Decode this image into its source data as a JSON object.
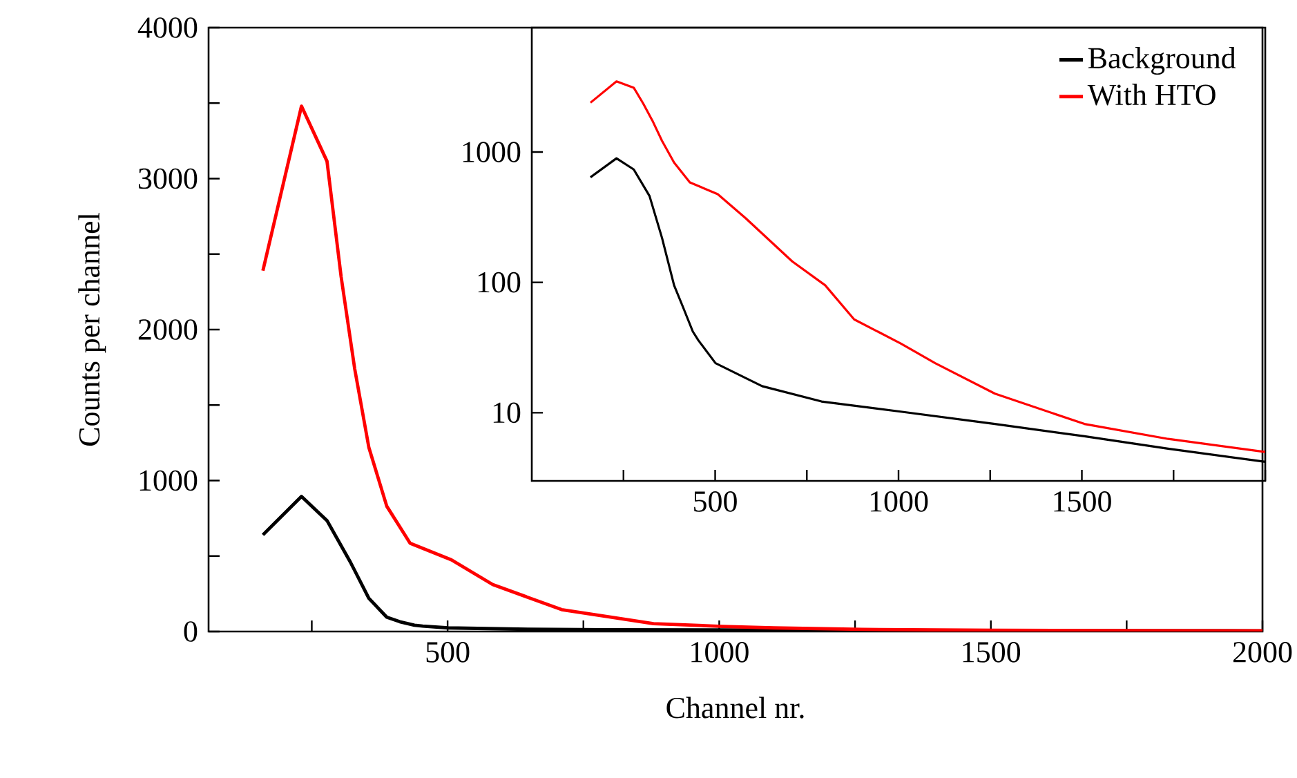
{
  "chart_data": [
    {
      "type": "line",
      "xlabel": "Channel nr.",
      "ylabel": "Counts per channel",
      "xlim": [
        60,
        2000
      ],
      "ylim": [
        0,
        4000
      ],
      "xticks": [
        {
          "value": 250,
          "label": null
        },
        500,
        {
          "value": 750,
          "label": null
        },
        1000,
        {
          "value": 1250,
          "label": null
        },
        1500,
        {
          "value": 1750,
          "label": null
        },
        2000
      ],
      "yticks": [
        0,
        {
          "value": 500,
          "label": null
        },
        1000,
        {
          "value": 1500,
          "label": null
        },
        2000,
        {
          "value": 2500,
          "label": null
        },
        3000,
        {
          "value": 3500,
          "label": null
        },
        4000
      ],
      "grid": false,
      "legend": false,
      "series": [
        {
          "color": "#000000",
          "x": [
            160,
            231,
            278,
            321,
            355,
            388,
            412,
            439,
            454,
            501,
            628,
            790,
            1006,
            1263,
            1507,
            1735,
            2000
          ],
          "values": [
            640,
            895,
            735,
            460,
            220,
            95,
            65,
            42,
            36,
            24,
            16,
            12.2,
            10.2,
            8.2,
            6.6,
            5.3,
            4.2
          ]
        },
        {
          "color": "#ff0000",
          "x": [
            160,
            231,
            278,
            304,
            329,
            355,
            388,
            431,
            507,
            583,
            710,
            800,
            879,
            1006,
            1100,
            1263,
            1507,
            1735,
            2000
          ],
          "values": [
            2390,
            3480,
            3115,
            2350,
            1740,
            1220,
            830,
            585,
            475,
            311,
            145,
            95,
            52,
            34,
            24,
            14,
            8.2,
            6.3,
            5.0
          ]
        }
      ]
    },
    {
      "type": "line",
      "xlim": [
        0,
        2000
      ],
      "ylim": [
        3,
        9000
      ],
      "log": "y",
      "xticks": [
        {
          "value": 250,
          "label": null
        },
        500,
        {
          "value": 750,
          "label": null
        },
        1000,
        {
          "value": 1250,
          "label": null
        },
        1500,
        {
          "value": 1750,
          "label": null
        },
        {
          "value": 2000,
          "label": null
        }
      ],
      "yticks": [
        10,
        100,
        1000
      ],
      "grid": false,
      "legend": "top right",
      "series": [
        {
          "name": "Background",
          "color": "#000000",
          "x": [
            160,
            231,
            278,
            321,
            355,
            388,
            412,
            439,
            454,
            501,
            628,
            790,
            1006,
            1263,
            1507,
            1735,
            2000
          ],
          "values": [
            640,
            895,
            735,
            460,
            220,
            95,
            65,
            42,
            36,
            24,
            16,
            12.2,
            10.2,
            8.2,
            6.6,
            5.3,
            4.2
          ]
        },
        {
          "name": "With HTO",
          "color": "#ff0000",
          "x": [
            160,
            231,
            278,
            304,
            329,
            355,
            388,
            431,
            507,
            583,
            710,
            800,
            879,
            1006,
            1100,
            1263,
            1507,
            1735,
            2000
          ],
          "values": [
            2390,
            3480,
            3115,
            2350,
            1740,
            1220,
            830,
            585,
            475,
            311,
            145,
            95,
            52,
            34,
            24,
            14,
            8.2,
            6.3,
            5.0
          ]
        }
      ]
    }
  ]
}
